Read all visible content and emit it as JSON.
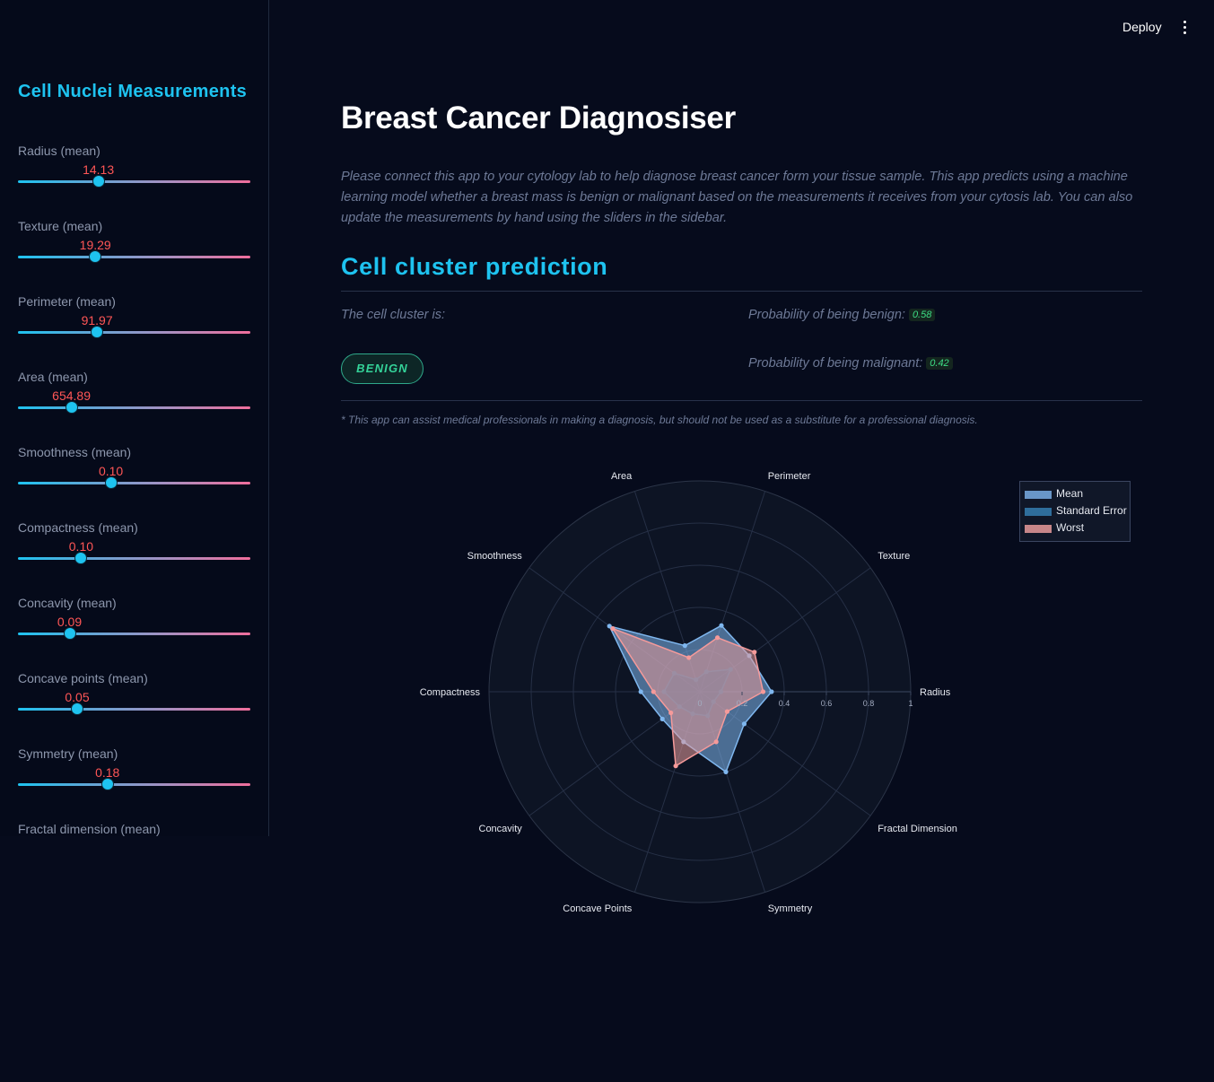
{
  "toolbar": {
    "deploy_label": "Deploy",
    "menu_icon": "kebab-menu-icon"
  },
  "sidebar": {
    "title": "Cell Nuclei Measurements",
    "sliders": [
      {
        "label": "Radius (mean)",
        "value": "14.13",
        "fraction": 0.346
      },
      {
        "label": "Texture (mean)",
        "value": "19.29",
        "fraction": 0.333
      },
      {
        "label": "Perimeter (mean)",
        "value": "91.97",
        "fraction": 0.34
      },
      {
        "label": "Area (mean)",
        "value": "654.89",
        "fraction": 0.23
      },
      {
        "label": "Smoothness (mean)",
        "value": "0.10",
        "fraction": 0.4
      },
      {
        "label": "Compactness (mean)",
        "value": "0.10",
        "fraction": 0.272
      },
      {
        "label": "Concavity (mean)",
        "value": "0.09",
        "fraction": 0.222
      },
      {
        "label": "Concave points (mean)",
        "value": "0.05",
        "fraction": 0.255
      },
      {
        "label": "Symmetry (mean)",
        "value": "0.18",
        "fraction": 0.385
      },
      {
        "label": "Fractal dimension (mean)"
      }
    ]
  },
  "main": {
    "title": "Breast Cancer Diagnosiser",
    "description": "Please connect this app to your cytology lab to help diagnose breast cancer form your tissue sample. This app predicts using a machine learning model whether a breast mass is benign or malignant based on the measurements it receives from your cytosis lab. You can also update the measurements by hand using the sliders in the sidebar.",
    "prediction_heading": "Cell cluster prediction",
    "cluster_label": "The cell cluster is:",
    "diagnosis": "BENIGN",
    "prob_benign_label": "Probability of being benign:",
    "prob_benign": "0.58",
    "prob_malignant_label": "Probability of being malignant:",
    "prob_malignant": "0.42",
    "disclaimer": "* This app can assist medical professionals in making a diagnosis, but should not be used as a substitute for a professional diagnosis."
  },
  "colors": {
    "accent": "#1ec3f0",
    "value_red": "#ff5656",
    "benign_green": "#34d399",
    "mean_series": "#7fb7ef",
    "se_series": "#3f7fae",
    "worst_series": "#f59a9a"
  },
  "chart_data": {
    "type": "radar",
    "categories": [
      "Radius",
      "Texture",
      "Perimeter",
      "Area",
      "Smoothness",
      "Compactness",
      "Concavity",
      "Concave Points",
      "Symmetry",
      "Fractal Dimension"
    ],
    "radial_ticks": [
      "0",
      "0.2",
      "0.4",
      "0.6",
      "0.8",
      "1"
    ],
    "radial_range": [
      0,
      1
    ],
    "legend_placement": "top-right",
    "series": [
      {
        "name": "Mean",
        "values": [
          0.34,
          0.29,
          0.33,
          0.23,
          0.53,
          0.28,
          0.22,
          0.25,
          0.4,
          0.26
        ]
      },
      {
        "name": "Standard Error",
        "values": [
          0.1,
          0.18,
          0.1,
          0.06,
          0.15,
          0.17,
          0.12,
          0.11,
          0.12,
          0.08
        ]
      },
      {
        "name": "Worst",
        "values": [
          0.3,
          0.32,
          0.27,
          0.17,
          0.51,
          0.22,
          0.17,
          0.37,
          0.25,
          0.16
        ]
      }
    ]
  }
}
